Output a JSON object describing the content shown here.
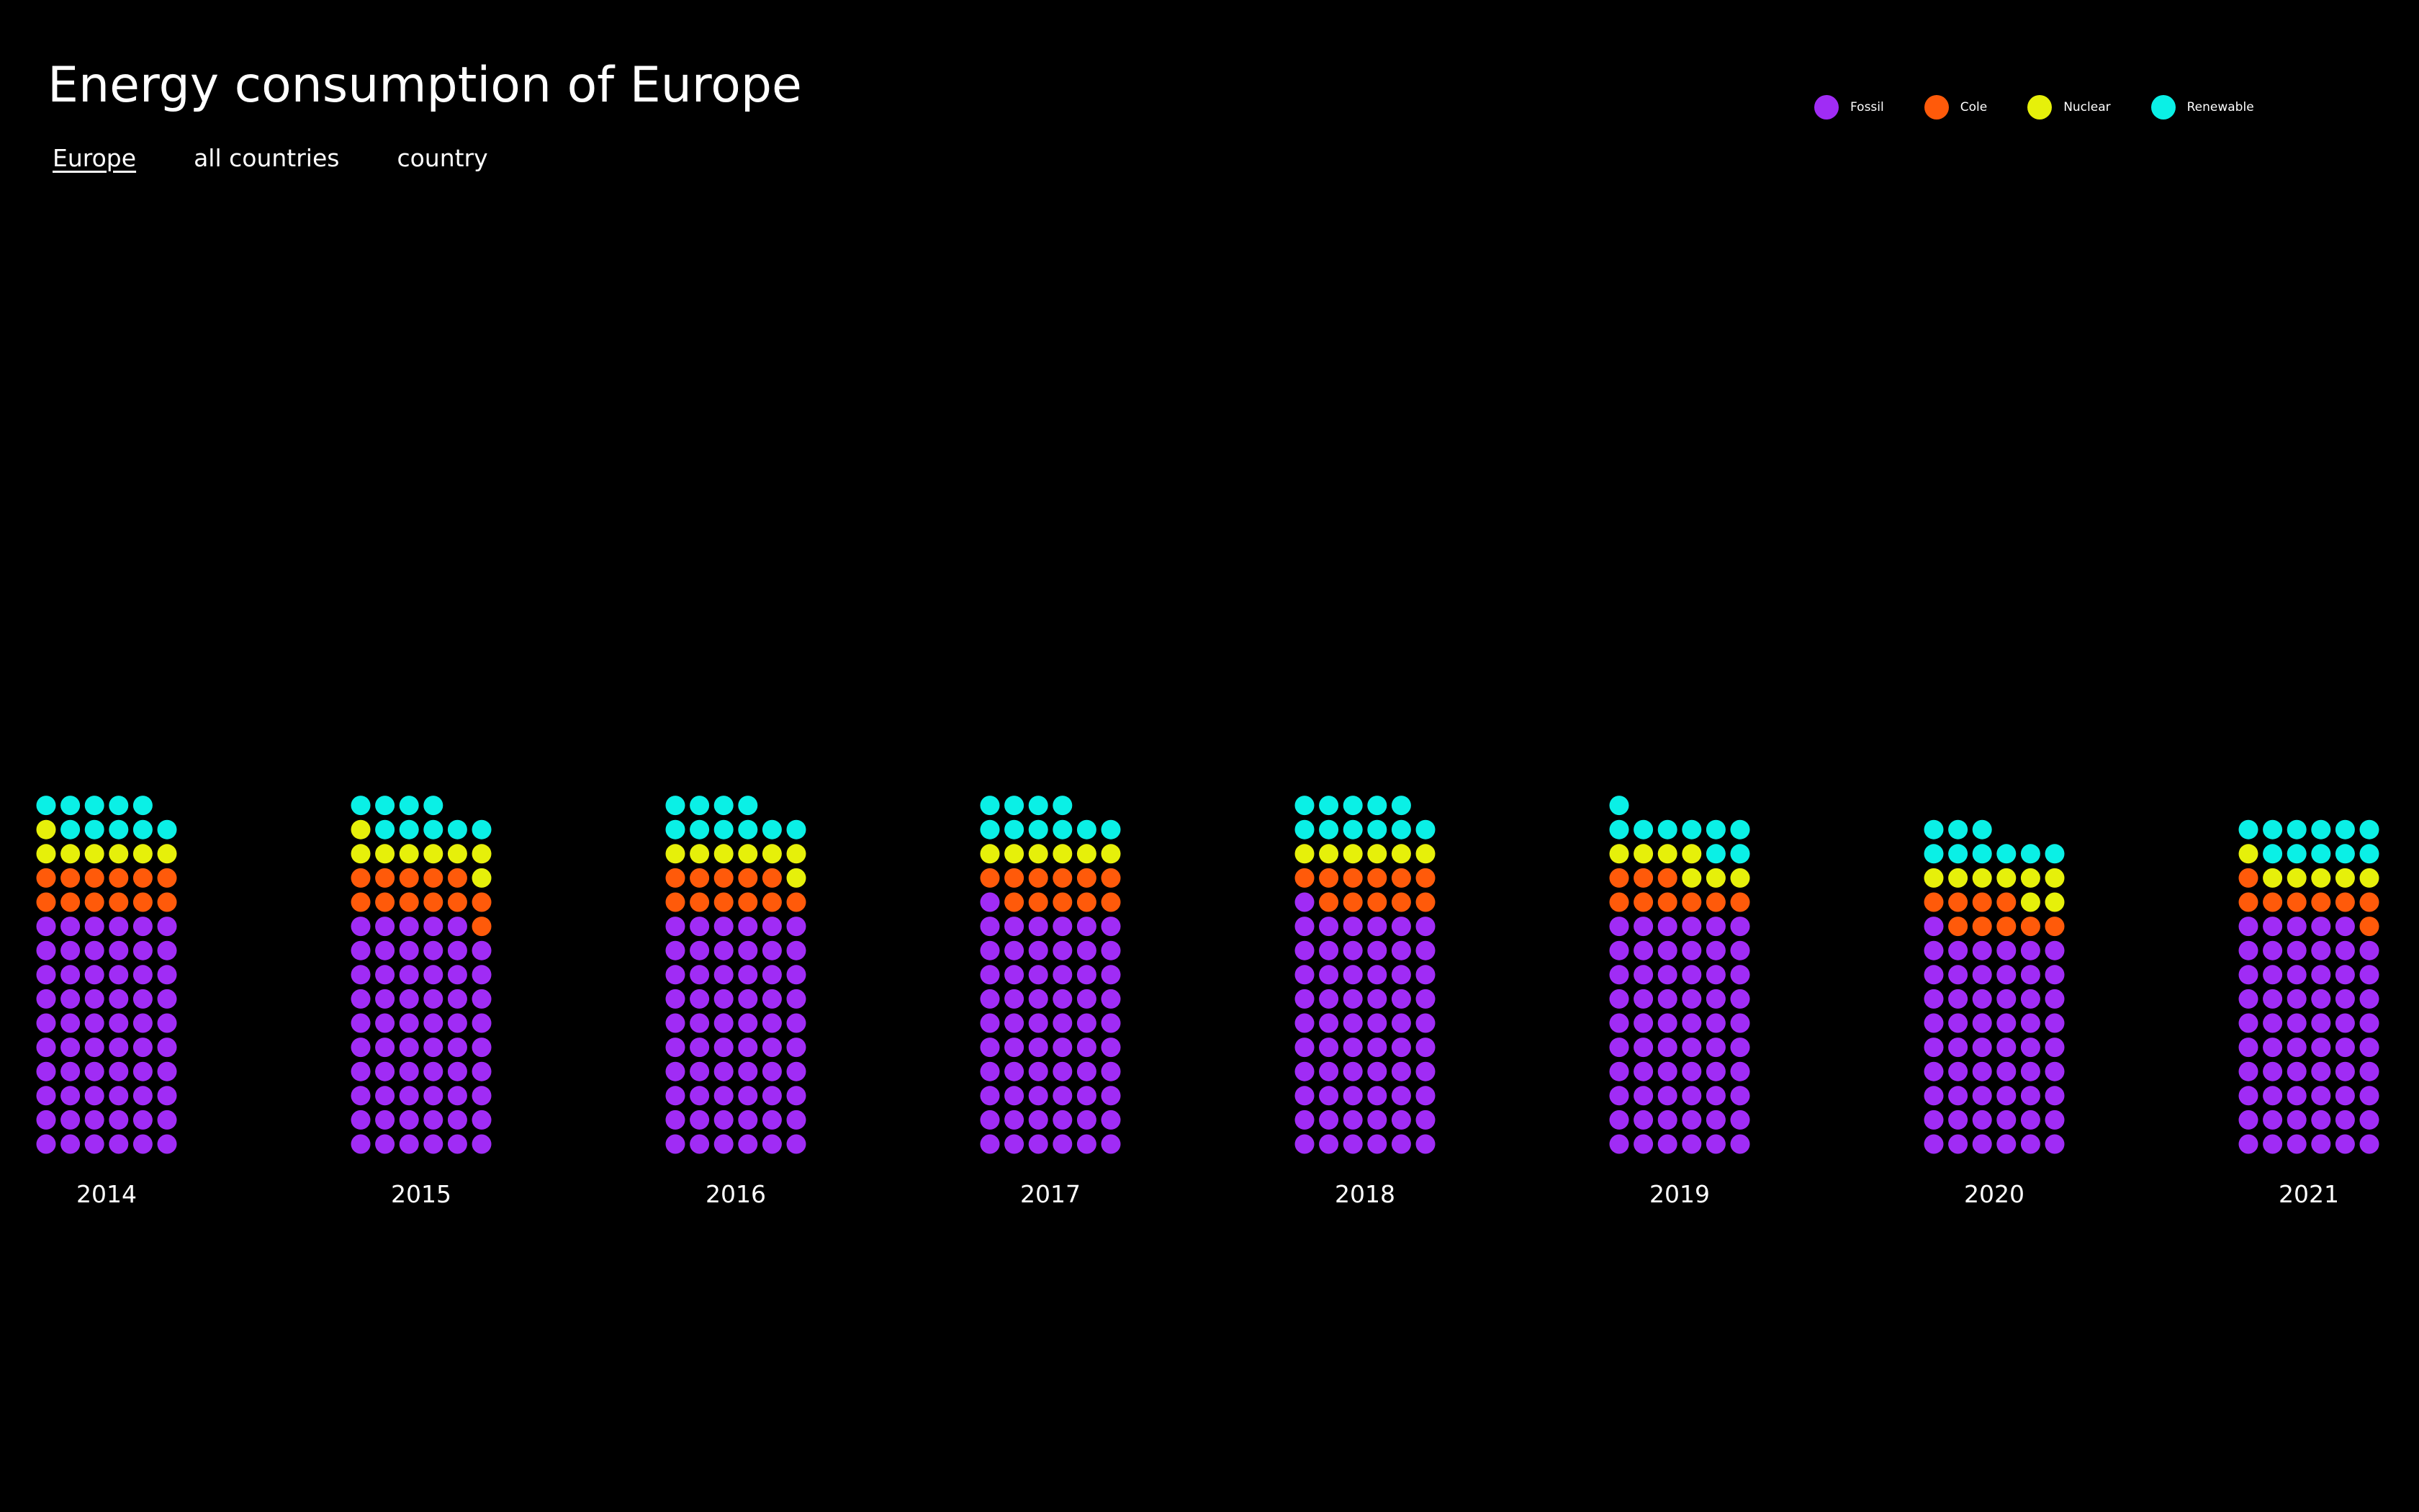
{
  "title": "Energy consumption of Europe",
  "tabs": [
    {
      "label": "Europe",
      "active": true
    },
    {
      "label": "all countries",
      "active": false
    },
    {
      "label": "country",
      "active": false
    }
  ],
  "legend": [
    {
      "key": "fossil",
      "label": "Fossil",
      "color": "#A02CF5"
    },
    {
      "key": "cole",
      "label": "Cole",
      "color": "#FF5A0A"
    },
    {
      "key": "nuclear",
      "label": "Nuclear",
      "color": "#E6F00A"
    },
    {
      "key": "renewable",
      "label": "Renewable",
      "color": "#0AF0E6"
    }
  ],
  "chart_data": {
    "type": "waffle",
    "title": "Energy consumption of Europe",
    "dots_per_row": 6,
    "categories": [
      "2014",
      "2015",
      "2016",
      "2017",
      "2018",
      "2019",
      "2020",
      "2021"
    ],
    "series": [
      {
        "name": "Fossil",
        "color": "#A02CF5",
        "values": [
          60,
          59,
          60,
          61,
          61,
          60,
          55,
          59
        ]
      },
      {
        "name": "Cole",
        "color": "#FF5A0A",
        "values": [
          12,
          12,
          11,
          11,
          11,
          9,
          9,
          8
        ]
      },
      {
        "name": "Nuclear",
        "color": "#E6F00A",
        "values": [
          7,
          8,
          7,
          6,
          6,
          7,
          8,
          6
        ]
      },
      {
        "name": "Renewable",
        "color": "#0AF0E6",
        "values": [
          10,
          9,
          10,
          10,
          11,
          9,
          9,
          11
        ]
      }
    ]
  }
}
